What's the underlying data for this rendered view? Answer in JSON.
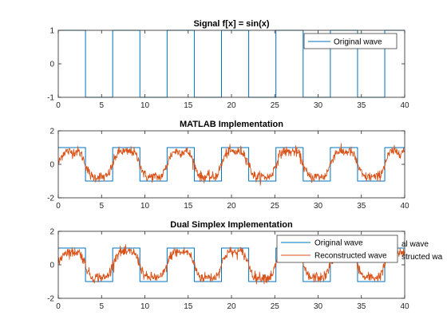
{
  "colors": {
    "original": "#0072BD",
    "reconstructed": "#D95319",
    "axis": "#262626",
    "background": "#ffffff"
  },
  "chart_data": [
    {
      "type": "line",
      "title": "Signal f[x] = sin(x)",
      "xlim": [
        0,
        40
      ],
      "ylim": [
        -1,
        1
      ],
      "xticks": [
        0,
        5,
        10,
        15,
        20,
        25,
        30,
        35,
        40
      ],
      "yticks": [
        -1,
        0,
        1
      ],
      "legend": {
        "placement": "top-right",
        "entries": [
          "Original wave"
        ]
      },
      "series": [
        {
          "name": "Original wave",
          "kind": "square",
          "x_range": [
            0,
            40
          ],
          "period_x": 6.2832,
          "levels": [
            1,
            -1
          ]
        }
      ]
    },
    {
      "type": "line",
      "title": "MATLAB Implementation",
      "xlim": [
        0,
        40
      ],
      "ylim": [
        -2,
        2
      ],
      "xticks": [
        0,
        5,
        10,
        15,
        20,
        25,
        30,
        35,
        40
      ],
      "yticks": [
        -2,
        0,
        2
      ],
      "series": [
        {
          "kind": "square",
          "x_range": [
            0,
            40
          ],
          "period_x": 6.2832,
          "levels": [
            1,
            -1
          ]
        },
        {
          "kind": "noisy-reconstruction",
          "x_range": [
            0,
            40
          ],
          "period_x": 6.2832,
          "amplitude": 0.85,
          "noise": 0.25
        }
      ]
    },
    {
      "type": "line",
      "title": "Dual Simplex Implementation",
      "xlim": [
        0,
        40
      ],
      "ylim": [
        -2,
        2
      ],
      "xticks": [
        0,
        5,
        10,
        15,
        20,
        25,
        30,
        35,
        40
      ],
      "yticks": [
        -2,
        0,
        2
      ],
      "legend": {
        "placement": "top-right",
        "entries": [
          "Original wave",
          "Reconstructed wave"
        ],
        "clipped_ghost_entries": [
          "al wave",
          "structed wa"
        ]
      },
      "series": [
        {
          "name": "Original wave",
          "kind": "square",
          "x_range": [
            0,
            40
          ],
          "period_x": 6.2832,
          "levels": [
            1,
            -1
          ]
        },
        {
          "name": "Reconstructed wave",
          "kind": "noisy-reconstruction",
          "x_range": [
            0,
            40
          ],
          "period_x": 6.2832,
          "amplitude": 0.85,
          "noise": 0.25
        }
      ]
    }
  ]
}
